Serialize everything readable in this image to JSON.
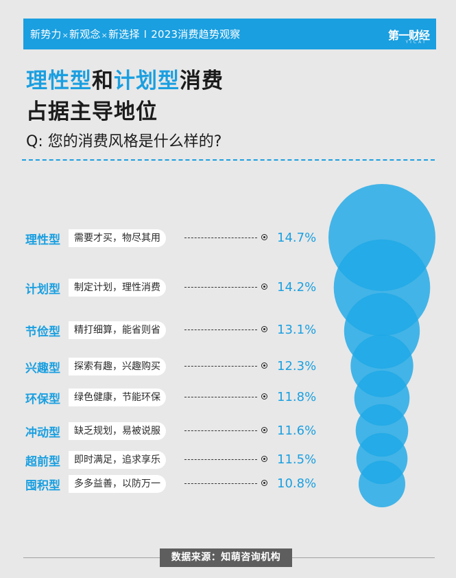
{
  "header": {
    "parts": [
      "新势力",
      "新观念",
      "新选择"
    ],
    "cross": "×",
    "sep": "I",
    "topic": "2023消费趋势观察",
    "logo": "第一财经",
    "logo_sub": "YICAI"
  },
  "title": {
    "line1": [
      {
        "text": "理性型",
        "hl": true
      },
      {
        "text": "和",
        "hl": false
      },
      {
        "text": "计划型",
        "hl": true
      },
      {
        "text": "消费",
        "hl": false
      }
    ],
    "line2": "占据主导地位"
  },
  "question": "Q: 您的消费风格是什么样的?",
  "source": "数据来源：知萌咨询机构",
  "colors": {
    "accent": "#1a9fe0",
    "bubble": "#1fa8e6",
    "banner": "#1a9fe0",
    "background": "#e8e8e8"
  },
  "chart_data": {
    "type": "bubble",
    "unit": "%",
    "categories": [
      "理性型",
      "计划型",
      "节俭型",
      "兴趣型",
      "环保型",
      "冲动型",
      "超前型",
      "囤积型"
    ],
    "descriptions": [
      "需要才买，物尽其用",
      "制定计划，理性消费",
      "精打细算，能省则省",
      "探索有趣，兴趣购买",
      "绿色健康，节能环保",
      "缺乏规划，易被说服",
      "即时满足，追求享乐",
      "多多益善，以防万一"
    ],
    "values": [
      14.7,
      14.2,
      13.1,
      12.3,
      11.8,
      11.6,
      11.5,
      10.8
    ],
    "labels": [
      "14.7%",
      "14.2%",
      "13.1%",
      "12.3%",
      "11.8%",
      "11.6%",
      "11.5%",
      "10.8%"
    ]
  }
}
